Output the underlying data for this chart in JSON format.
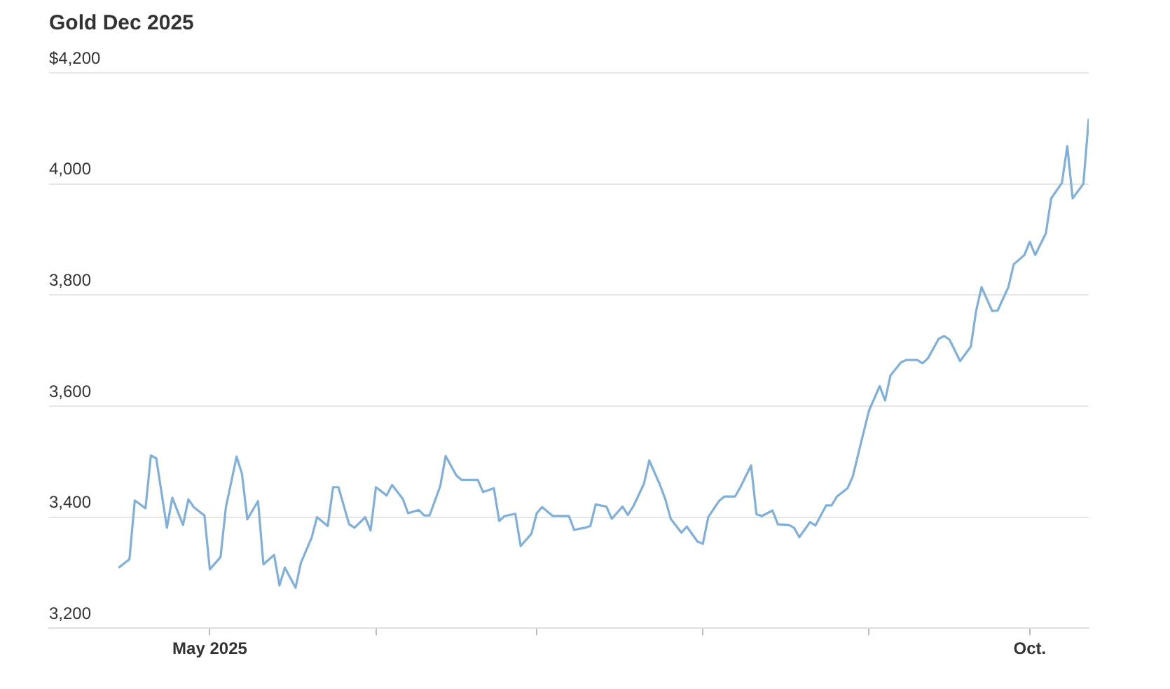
{
  "chart_data": {
    "type": "line",
    "title": "Gold Dec 2025",
    "x": [
      "2025-04-14",
      "2025-04-16",
      "2025-04-17",
      "2025-04-19",
      "2025-04-20",
      "2025-04-21",
      "2025-04-23",
      "2025-04-24",
      "2025-04-26",
      "2025-04-27",
      "2025-04-28",
      "2025-04-30",
      "2025-05-01",
      "2025-05-03",
      "2025-05-04",
      "2025-05-06",
      "2025-05-07",
      "2025-05-08",
      "2025-05-10",
      "2025-05-11",
      "2025-05-13",
      "2025-05-14",
      "2025-05-15",
      "2025-05-17",
      "2025-05-18",
      "2025-05-20",
      "2025-05-21",
      "2025-05-23",
      "2025-05-24",
      "2025-05-25",
      "2025-05-27",
      "2025-05-28",
      "2025-05-30",
      "2025-05-31",
      "2025-06-01",
      "2025-06-03",
      "2025-06-04",
      "2025-06-06",
      "2025-06-07",
      "2025-06-09",
      "2025-06-10",
      "2025-06-11",
      "2025-06-13",
      "2025-06-14",
      "2025-06-16",
      "2025-06-17",
      "2025-06-18",
      "2025-06-20",
      "2025-06-21",
      "2025-06-23",
      "2025-06-24",
      "2025-06-25",
      "2025-06-27",
      "2025-06-28",
      "2025-06-30",
      "2025-07-01",
      "2025-07-02",
      "2025-07-04",
      "2025-07-05",
      "2025-07-07",
      "2025-07-08",
      "2025-07-10",
      "2025-07-11",
      "2025-07-12",
      "2025-07-14",
      "2025-07-15",
      "2025-07-17",
      "2025-07-18",
      "2025-07-19",
      "2025-07-21",
      "2025-07-22",
      "2025-07-24",
      "2025-07-25",
      "2025-07-26",
      "2025-07-28",
      "2025-07-29",
      "2025-07-31",
      "2025-08-01",
      "2025-08-02",
      "2025-08-04",
      "2025-08-05",
      "2025-08-07",
      "2025-08-08",
      "2025-08-10",
      "2025-08-11",
      "2025-08-12",
      "2025-08-14",
      "2025-08-15",
      "2025-08-17",
      "2025-08-18",
      "2025-08-19",
      "2025-08-21",
      "2025-08-22",
      "2025-08-24",
      "2025-08-25",
      "2025-08-26",
      "2025-08-28",
      "2025-08-29",
      "2025-08-30",
      "2025-09-01",
      "2025-09-03",
      "2025-09-04",
      "2025-09-05",
      "2025-09-07",
      "2025-09-08",
      "2025-09-10",
      "2025-09-11",
      "2025-09-12",
      "2025-09-14",
      "2025-09-15",
      "2025-09-16",
      "2025-09-18",
      "2025-09-20",
      "2025-09-21",
      "2025-09-22",
      "2025-09-24",
      "2025-09-25",
      "2025-09-27",
      "2025-09-28",
      "2025-09-30",
      "2025-10-01",
      "2025-10-02",
      "2025-10-04",
      "2025-10-05",
      "2025-10-07",
      "2025-10-08",
      "2025-10-09",
      "2025-10-11",
      "2025-10-12"
    ],
    "values": [
      3309,
      3324,
      3430,
      3416,
      3511,
      3506,
      3381,
      3435,
      3386,
      3432,
      3418,
      3403,
      3306,
      3328,
      3418,
      3509,
      3478,
      3396,
      3429,
      3315,
      3332,
      3277,
      3309,
      3273,
      3318,
      3363,
      3400,
      3384,
      3454,
      3454,
      3387,
      3381,
      3400,
      3376,
      3454,
      3439,
      3458,
      3433,
      3407,
      3413,
      3403,
      3403,
      3456,
      3510,
      3475,
      3467,
      3467,
      3467,
      3445,
      3452,
      3393,
      3402,
      3406,
      3348,
      3370,
      3407,
      3418,
      3402,
      3402,
      3402,
      3377,
      3381,
      3384,
      3423,
      3419,
      3397,
      3419,
      3404,
      3419,
      3460,
      3502,
      3458,
      3432,
      3397,
      3372,
      3383,
      3356,
      3352,
      3400,
      3429,
      3437,
      3437,
      3454,
      3493,
      3405,
      3402,
      3412,
      3387,
      3386,
      3381,
      3364,
      3391,
      3385,
      3421,
      3421,
      3437,
      3452,
      3474,
      3514,
      3592,
      3636,
      3610,
      3655,
      3679,
      3683,
      3683,
      3677,
      3686,
      3721,
      3726,
      3720,
      3681,
      3707,
      3772,
      3814,
      3771,
      3772,
      3814,
      3855,
      3872,
      3896,
      3872,
      3911,
      3974,
      4002,
      4068,
      3974,
      4000,
      4117
    ],
    "color": "#7fb0dc",
    "xlim": [
      "2025-04-01",
      "2025-10-12"
    ],
    "xticks": [
      {
        "value": "2025-05-01",
        "label": "May 2025"
      },
      {
        "value": "2025-06-01",
        "label": null
      },
      {
        "value": "2025-07-01",
        "label": null
      },
      {
        "value": "2025-08-01",
        "label": null
      },
      {
        "value": "2025-09-01",
        "label": null
      },
      {
        "value": "2025-10-01",
        "label": "Oct."
      }
    ],
    "ylim": [
      3200,
      4200
    ],
    "yticks": [
      {
        "value": 3200,
        "label": "3,200"
      },
      {
        "value": 3400,
        "label": "3,400"
      },
      {
        "value": 3600,
        "label": "3,600"
      },
      {
        "value": 3800,
        "label": "3,800"
      },
      {
        "value": 4000,
        "label": "4,000"
      },
      {
        "value": 4200,
        "label": "$4,200"
      }
    ],
    "grid": "y",
    "legend": false,
    "marker": "none",
    "line_style": "solid"
  }
}
